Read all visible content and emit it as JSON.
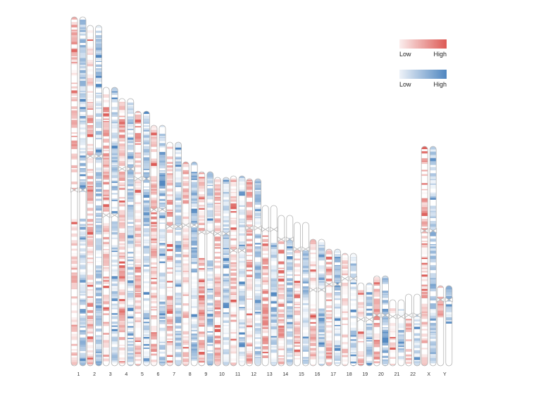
{
  "chromosomes": [
    {
      "name": "1",
      "length": 248,
      "centromere": 123
    },
    {
      "name": "2",
      "length": 242,
      "centromere": 93
    },
    {
      "name": "3",
      "length": 198,
      "centromere": 91
    },
    {
      "name": "4",
      "length": 190,
      "centromere": 50
    },
    {
      "name": "5",
      "length": 181,
      "centromere": 48
    },
    {
      "name": "6",
      "length": 171,
      "centromere": 60
    },
    {
      "name": "7",
      "length": 159,
      "centromere": 60
    },
    {
      "name": "8",
      "length": 145,
      "centromere": 45
    },
    {
      "name": "9",
      "length": 138,
      "centromere": 43
    },
    {
      "name": "10",
      "length": 134,
      "centromere": 40
    },
    {
      "name": "11",
      "length": 135,
      "centromere": 53
    },
    {
      "name": "12",
      "length": 133,
      "centromere": 35
    },
    {
      "name": "13",
      "length": 114,
      "centromere": 17
    },
    {
      "name": "14",
      "length": 107,
      "centromere": 17
    },
    {
      "name": "15",
      "length": 102,
      "centromere": 19
    },
    {
      "name": "16",
      "length": 90,
      "centromere": 36
    },
    {
      "name": "17",
      "length": 83,
      "centromere": 25
    },
    {
      "name": "18",
      "length": 80,
      "centromere": 18
    },
    {
      "name": "19",
      "length": 59,
      "centromere": 26
    },
    {
      "name": "20",
      "length": 64,
      "centromere": 28
    },
    {
      "name": "21",
      "length": 47,
      "centromere": 12
    },
    {
      "name": "22",
      "length": 51,
      "centromere": 15
    },
    {
      "name": "X",
      "length": 156,
      "centromere": 60
    },
    {
      "name": "Y",
      "length": 57,
      "centromere": 10
    }
  ],
  "gaps": {
    "1": [
      [
        123,
        143
      ]
    ],
    "3": [
      [
        90,
        94
      ]
    ],
    "9": [
      [
        43,
        61
      ]
    ],
    "13": [
      [
        0,
        17
      ]
    ],
    "14": [
      [
        0,
        16
      ]
    ],
    "15": [
      [
        0,
        18
      ]
    ],
    "16": [
      [
        36,
        46
      ]
    ],
    "19": [
      [
        24,
        28
      ]
    ],
    "21": [
      [
        0,
        5
      ]
    ],
    "22": [
      [
        0,
        13
      ]
    ],
    "Y": [
      [
        26,
        57
      ]
    ]
  },
  "legends": [
    {
      "low_label": "Low",
      "high_label": "High",
      "color_low": "#fbeeee",
      "color_high": "#dd5a55"
    },
    {
      "low_label": "Low",
      "high_label": "High",
      "color_low": "#eef2f8",
      "color_high": "#4f86c0"
    }
  ],
  "colors": {
    "red_high": "#dd5a55",
    "blue_high": "#4f86c0",
    "outline": "#b5b5b5"
  }
}
